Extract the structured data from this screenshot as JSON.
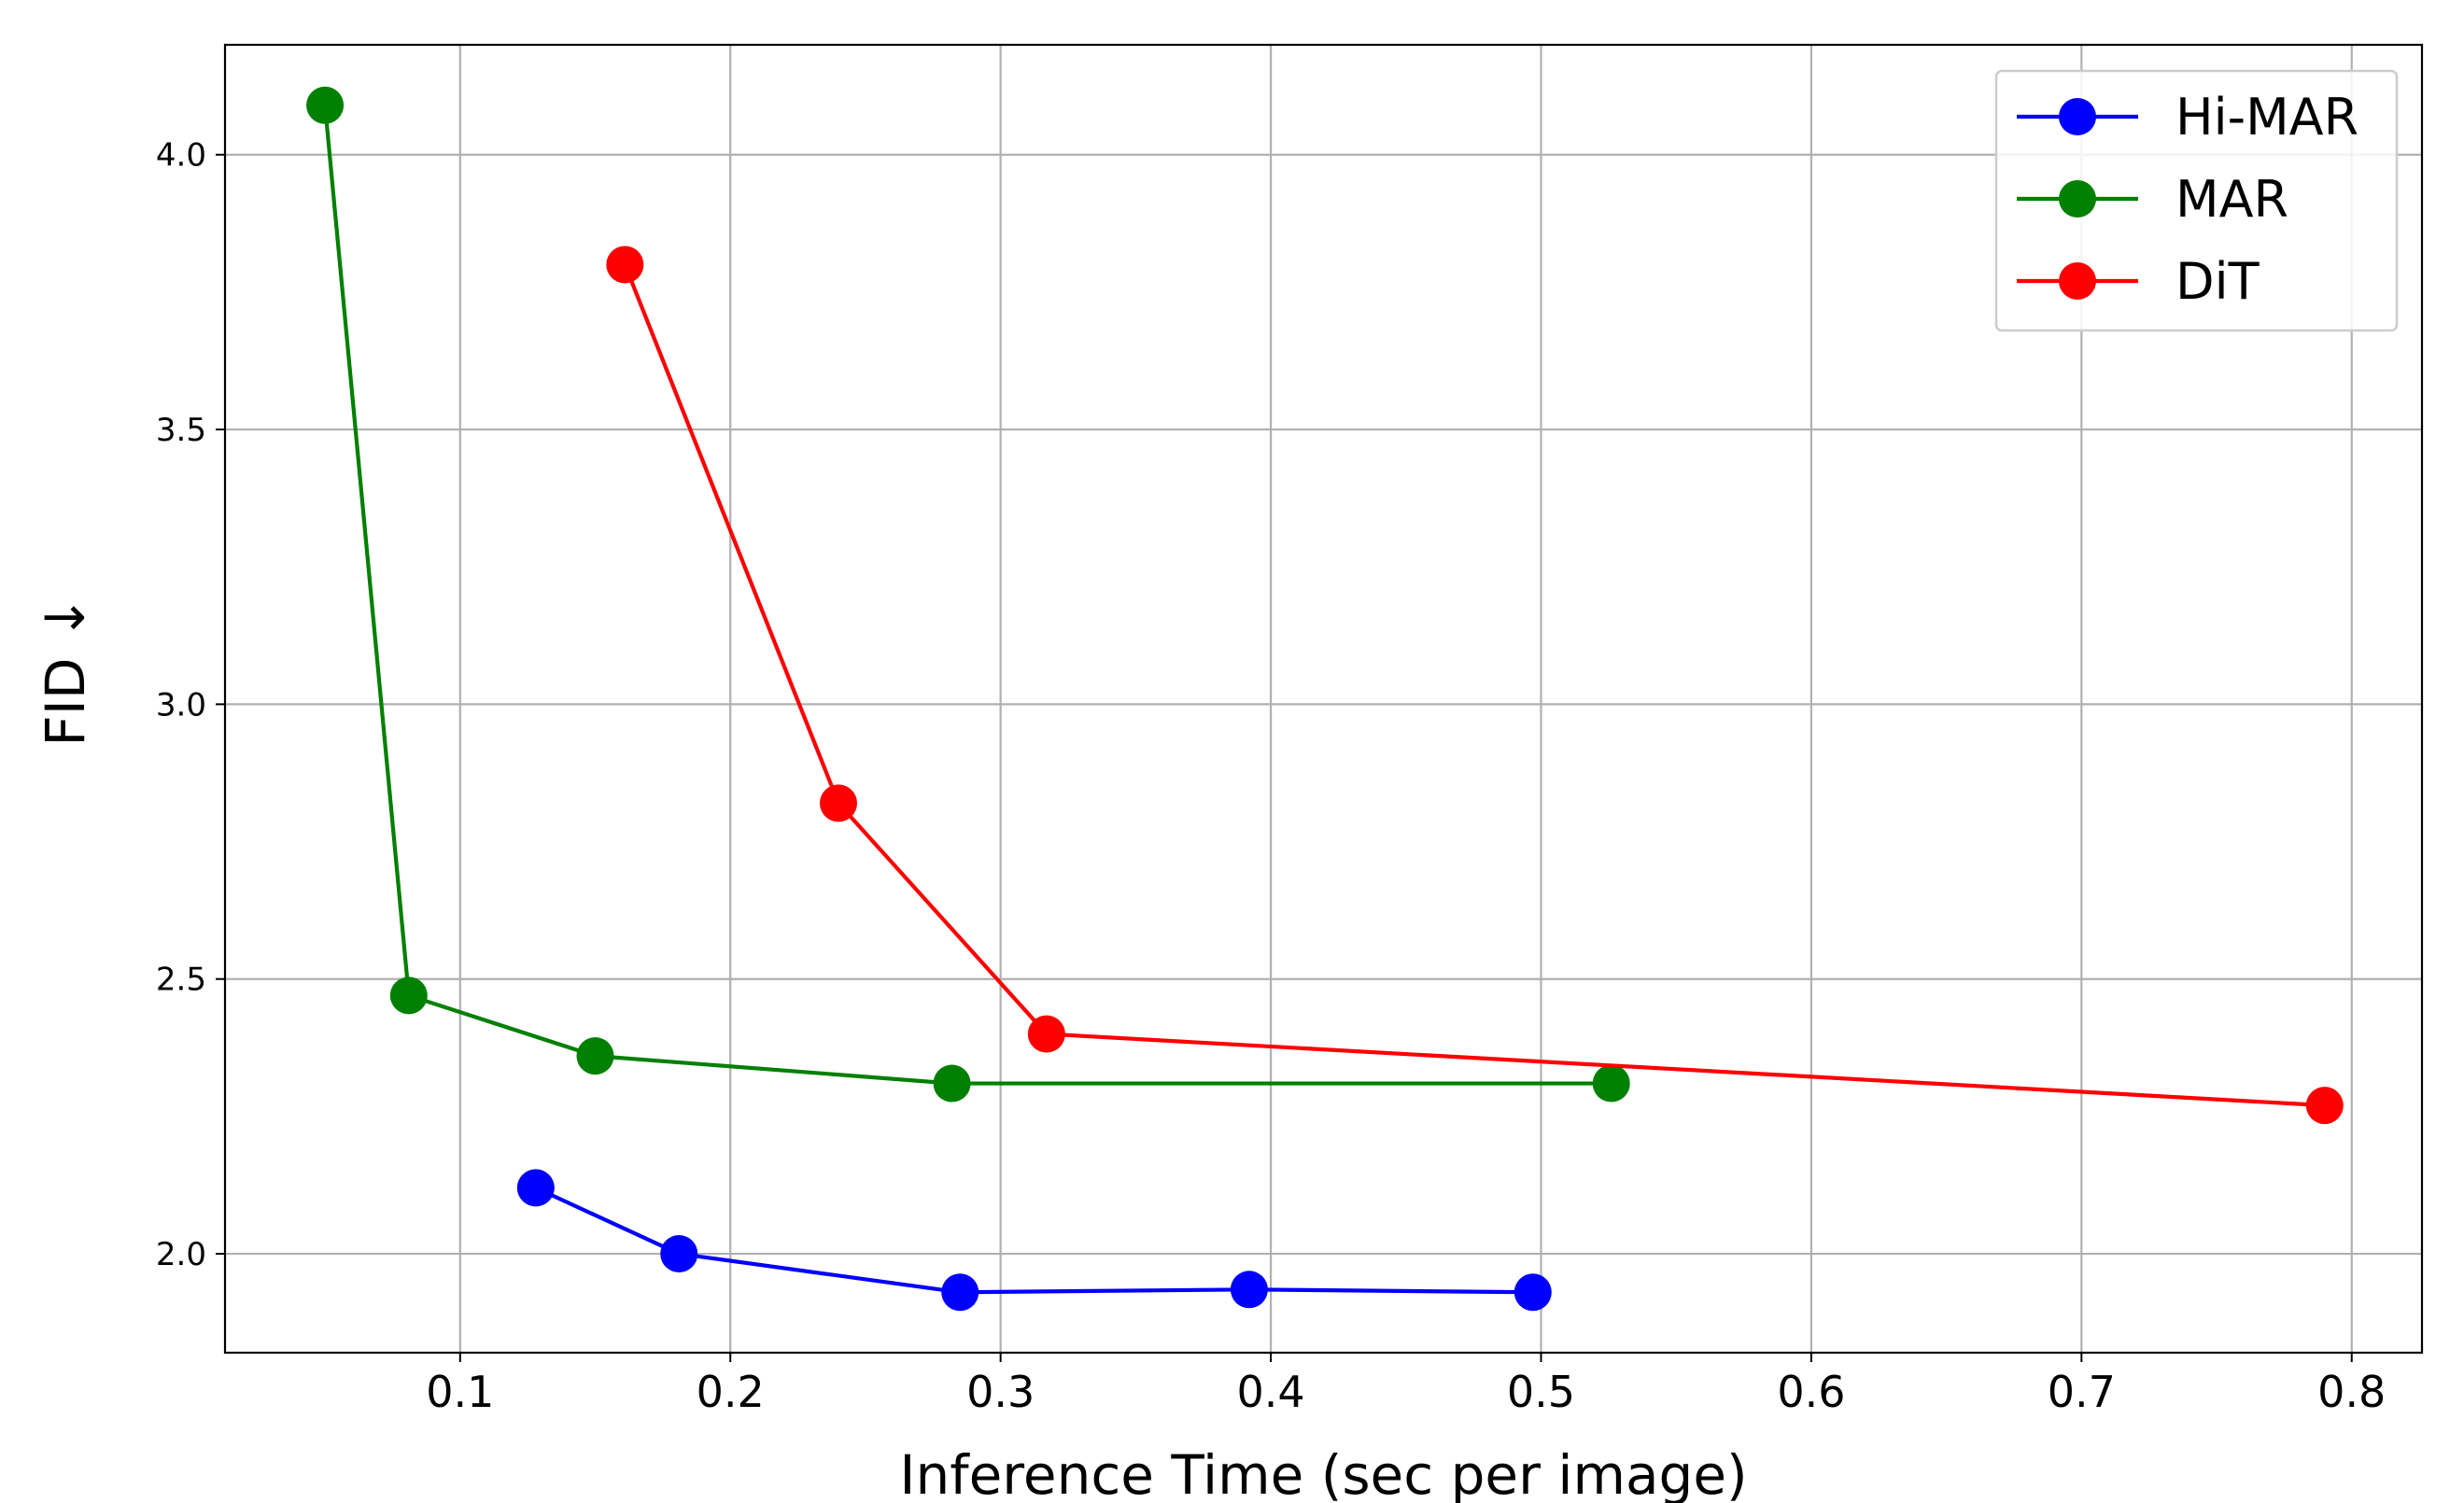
{
  "chart_data": {
    "type": "line",
    "title": "",
    "xlabel": "Inference Time (sec per image)",
    "ylabel": "FID ↓",
    "xlim": [
      0.013,
      0.826
    ],
    "ylim": [
      1.82,
      4.2
    ],
    "xticks": [
      0.1,
      0.2,
      0.3,
      0.4,
      0.5,
      0.6,
      0.7,
      0.8
    ],
    "yticks": [
      2.0,
      2.5,
      3.0,
      3.5,
      4.0
    ],
    "xtick_labels": [
      "0.1",
      "0.2",
      "0.3",
      "0.4",
      "0.5",
      "0.6",
      "0.7",
      "0.8"
    ],
    "ytick_labels": [
      "2.0",
      "2.5",
      "3.0",
      "3.5",
      "4.0"
    ],
    "grid": true,
    "legend_position": "top-right",
    "series": [
      {
        "name": "Hi-MAR",
        "color": "#0000ff",
        "x": [
          0.128,
          0.181,
          0.285,
          0.392,
          0.497
        ],
        "y": [
          2.12,
          2.0,
          1.93,
          1.935,
          1.93
        ]
      },
      {
        "name": "MAR",
        "color": "#008000",
        "x": [
          0.05,
          0.081,
          0.15,
          0.282,
          0.526
        ],
        "y": [
          4.09,
          2.47,
          2.36,
          2.31,
          2.31
        ]
      },
      {
        "name": "DiT",
        "color": "#ff0000",
        "x": [
          0.161,
          0.24,
          0.317,
          0.79
        ],
        "y": [
          3.8,
          2.82,
          2.4,
          2.27
        ]
      }
    ]
  }
}
